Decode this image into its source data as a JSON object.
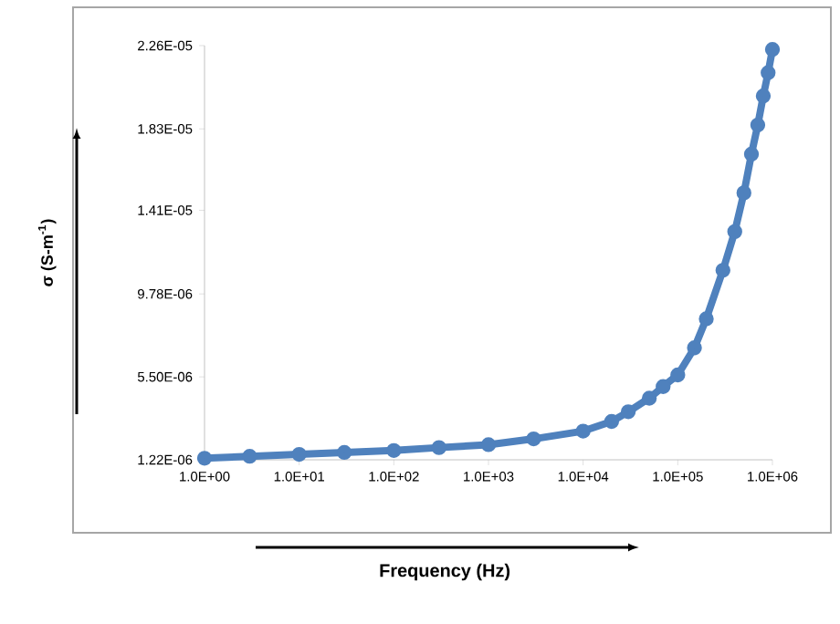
{
  "chart_data": {
    "type": "line",
    "xlabel": "Frequency (Hz)",
    "ylabel": "σ (S-m$^{-1}$)",
    "log": "x",
    "marker": "circle",
    "line_style": "solid",
    "xlim": [
      1,
      1000000
    ],
    "ylim": [
      1.22e-06,
      2.26e-05
    ],
    "xticks": [
      {
        "value": 1,
        "label": "1.0E+00"
      },
      {
        "value": 10,
        "label": "1.0E+01"
      },
      {
        "value": 100,
        "label": "1.0E+02"
      },
      {
        "value": 1000,
        "label": "1.0E+03"
      },
      {
        "value": 10000,
        "label": "1.0E+04"
      },
      {
        "value": 100000,
        "label": "1.0E+05"
      },
      {
        "value": 1000000,
        "label": "1.0E+06"
      }
    ],
    "yticks": [
      {
        "value": 1.22e-06,
        "label": "1.22E-06"
      },
      {
        "value": 5.5e-06,
        "label": "5.50E-06"
      },
      {
        "value": 9.78e-06,
        "label": "9.78E-06"
      },
      {
        "value": 1.41e-05,
        "label": "1.41E-05"
      },
      {
        "value": 1.83e-05,
        "label": "1.83E-05"
      },
      {
        "value": 2.26e-05,
        "label": "2.26E-05"
      }
    ],
    "x": [
      1,
      3,
      10,
      30,
      100,
      300,
      1000,
      3000,
      10000,
      20000,
      30000,
      50000,
      70000,
      100000,
      150000,
      200000,
      300000,
      400000,
      500000,
      600000,
      700000,
      800000,
      900000,
      1000000
    ],
    "series": [
      {
        "color": "#4f81bd",
        "values": [
          1.3e-06,
          1.4e-06,
          1.5e-06,
          1.6e-06,
          1.7e-06,
          1.85e-06,
          2e-06,
          2.3e-06,
          2.7e-06,
          3.2e-06,
          3.7e-06,
          4.4e-06,
          5e-06,
          5.6e-06,
          7e-06,
          8.5e-06,
          1.1e-05,
          1.3e-05,
          1.5e-05,
          1.7e-05,
          1.85e-05,
          2e-05,
          2.12e-05,
          2.24e-05
        ]
      }
    ]
  }
}
